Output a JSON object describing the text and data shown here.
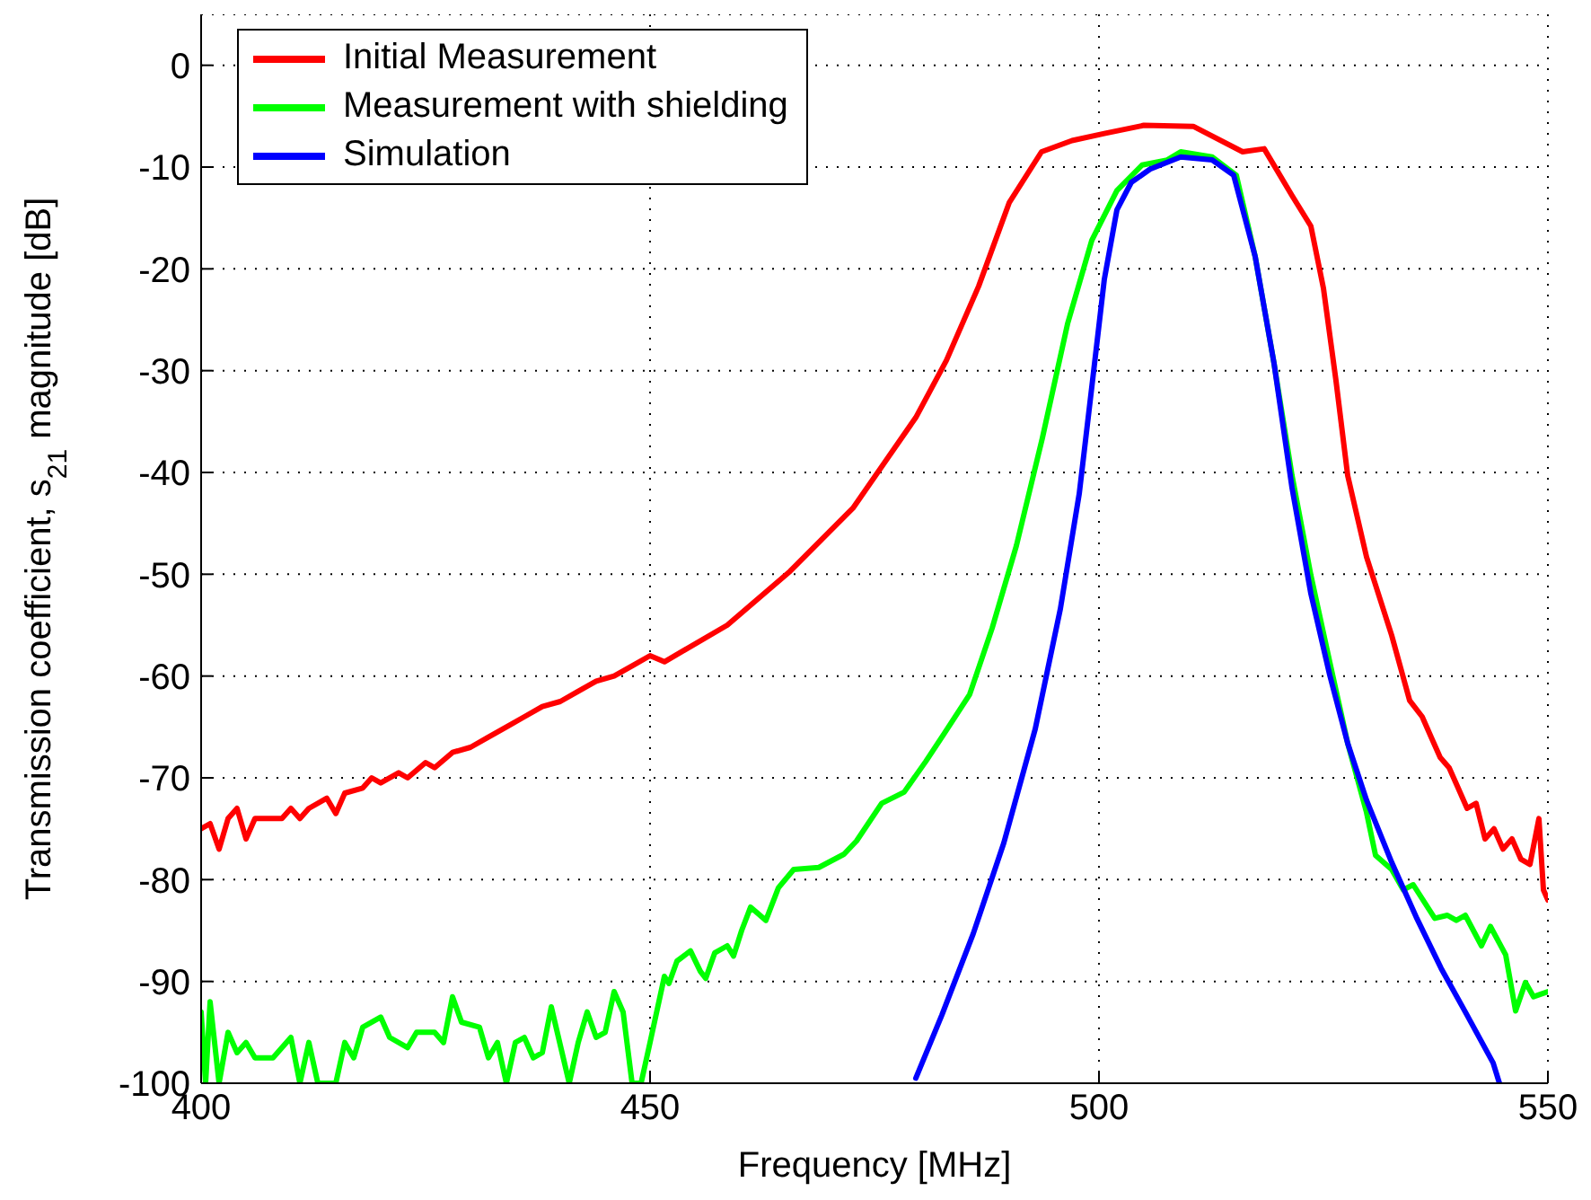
{
  "chart_data": {
    "type": "line",
    "xlabel": "Frequency [MHz]",
    "ylabel": "Transmission coefficient, s$_{21}$ magnitude [dB]",
    "xlim": [
      400,
      550
    ],
    "xticks": [
      400,
      450,
      500,
      550
    ],
    "ylim": [
      -100,
      5
    ],
    "yticks": [
      -100,
      -90,
      -80,
      -70,
      -60,
      -50,
      -40,
      -30,
      -20,
      -10,
      0
    ],
    "grid": true,
    "legend": "top left",
    "marker": "none",
    "line_style": "solid",
    "series": [
      {
        "name": "Initial Measurement",
        "color": "#ff0000",
        "x": [
          400,
          401,
          402,
          403,
          404,
          405,
          406,
          407,
          409,
          410,
          411,
          412,
          414,
          415,
          416,
          418,
          419,
          420,
          422,
          423,
          425,
          426,
          428,
          430,
          432,
          434,
          436,
          438,
          440,
          442,
          444,
          446,
          448,
          450,
          451.6,
          458.6,
          465.6,
          472.6,
          479.6,
          483,
          486.6,
          490,
          493.6,
          497,
          500.6,
          505,
          510.5,
          516,
          518.4,
          521.5,
          523.6,
          525,
          526.4,
          527.7,
          529.8,
          532.6,
          534.6,
          536,
          537,
          538,
          539,
          540,
          541,
          542,
          543,
          544,
          545,
          546,
          547,
          548,
          549,
          549.5,
          550
        ],
        "values": [
          -75,
          -74.5,
          -77,
          -74,
          -73,
          -76,
          -74,
          -74,
          -74,
          -73,
          -74,
          -73,
          -72,
          -73.5,
          -71.5,
          -71,
          -70,
          -70.5,
          -69.5,
          -70,
          -68.5,
          -69,
          -67.5,
          -67,
          -66,
          -65,
          -64,
          -63,
          -62.5,
          -61.5,
          -60.5,
          -60,
          -59,
          -58,
          -58.6,
          -55,
          -49.7,
          -43.5,
          -34.6,
          -29,
          -21.7,
          -13.5,
          -8.5,
          -7.4,
          -6.7,
          -5.9,
          -6,
          -8.5,
          -8.2,
          -12.8,
          -15.8,
          -21.9,
          -31,
          -40.3,
          -48.3,
          -56,
          -62.4,
          -64,
          -66,
          -68,
          -69,
          -71,
          -73,
          -72.5,
          -76,
          -75,
          -77,
          -76,
          -78,
          -78.5,
          -74,
          -81,
          -82
        ]
      },
      {
        "name": "Measurement with shielding",
        "color": "#00ff00",
        "x": [
          400,
          400.5,
          401,
          402,
          403,
          404,
          405,
          406,
          408,
          410,
          411,
          412,
          413,
          415,
          416,
          417,
          418,
          420,
          421,
          423,
          424,
          426,
          427,
          428,
          429,
          431,
          432,
          433,
          434,
          435,
          436,
          437,
          438,
          439,
          441,
          442,
          443,
          444,
          445,
          446,
          447,
          448,
          449,
          450,
          451.6,
          452.1,
          453,
          454.5,
          455.6,
          456.2,
          457.2,
          458.6,
          459.3,
          460.2,
          461.2,
          462.9,
          464.3,
          466,
          468.8,
          471.6,
          473,
          475.8,
          478.3,
          480.7,
          482.8,
          485.6,
          488.1,
          490.8,
          493.7,
          496.5,
          499.2,
          502,
          504.8,
          507.6,
          509.1,
          512.6,
          515.3,
          517.4,
          519.5,
          521.5,
          523.6,
          525.7,
          527.7,
          529.8,
          530.8,
          532.6,
          533.9,
          535,
          537.4,
          538.8,
          539.8,
          540.8,
          542.6,
          543.6,
          545.3,
          546.4,
          547.5,
          548.4,
          550
        ],
        "values": [
          -93,
          -100,
          -92,
          -100,
          -95,
          -97,
          -96,
          -97.5,
          -97.5,
          -95.5,
          -100,
          -96,
          -100,
          -100,
          -96,
          -97.5,
          -94.5,
          -93.5,
          -95.5,
          -96.5,
          -95,
          -95,
          -96,
          -91.5,
          -94,
          -94.5,
          -97.5,
          -96,
          -100,
          -96,
          -95.5,
          -97.5,
          -97,
          -92.5,
          -100,
          -96,
          -93,
          -95.5,
          -95,
          -91,
          -93,
          -100,
          -100,
          -96,
          -89.5,
          -90.2,
          -88,
          -87,
          -89,
          -89.7,
          -87.2,
          -86.5,
          -87.5,
          -85,
          -82.7,
          -84,
          -80.8,
          -79,
          -78.8,
          -77.5,
          -76.2,
          -72.5,
          -71.4,
          -68.4,
          -65.6,
          -61.8,
          -55.3,
          -47.2,
          -36.6,
          -25.4,
          -17.2,
          -12.3,
          -9.8,
          -9.3,
          -8.5,
          -9,
          -10.8,
          -18.8,
          -29.3,
          -40.3,
          -50.1,
          -58.6,
          -66.6,
          -73.4,
          -77.6,
          -79,
          -81,
          -80.5,
          -83.8,
          -83.5,
          -84,
          -83.5,
          -86.5,
          -84.6,
          -87.4,
          -92.9,
          -90.1,
          -91.5,
          -91
        ]
      },
      {
        "name": "Simulation",
        "color": "#0000ff",
        "x": [
          479.6,
          482.5,
          486,
          489.4,
          492.9,
          495.7,
          497.8,
          499.2,
          500.6,
          502,
          503.6,
          505.7,
          509.1,
          512.6,
          515,
          517.4,
          519.5,
          521.5,
          523.6,
          525.7,
          527.7,
          529.8,
          532.6,
          535.4,
          538.1,
          540.8,
          543.9,
          544.6
        ],
        "values": [
          -99.5,
          -93.3,
          -85.3,
          -76.4,
          -65.2,
          -53.4,
          -42.1,
          -31.6,
          -21,
          -14.2,
          -11.5,
          -10.2,
          -9,
          -9.3,
          -10.8,
          -18.8,
          -29.3,
          -41.5,
          -51.9,
          -59.9,
          -66.6,
          -72.2,
          -78.3,
          -83.8,
          -88.7,
          -93,
          -98,
          -100
        ]
      }
    ]
  }
}
